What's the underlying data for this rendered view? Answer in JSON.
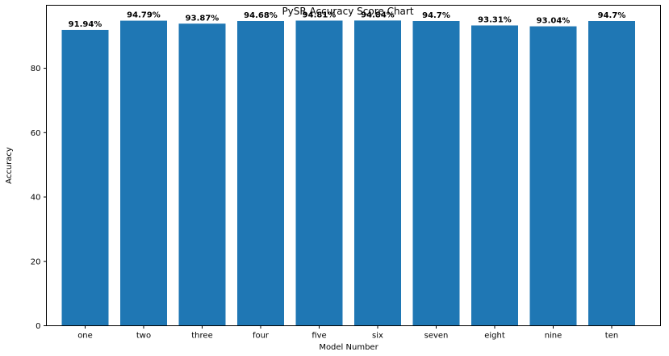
{
  "chart_data": {
    "type": "bar",
    "title": "PySR Accuracy Score Chart",
    "xlabel": "Model Number",
    "ylabel": "Accuracy",
    "categories": [
      "one",
      "two",
      "three",
      "four",
      "five",
      "six",
      "seven",
      "eight",
      "nine",
      "ten"
    ],
    "values": [
      91.94,
      94.79,
      93.87,
      94.68,
      94.81,
      94.84,
      94.7,
      93.31,
      93.04,
      94.7
    ],
    "data_labels": [
      "91.94%",
      "94.79%",
      "93.87%",
      "94.68%",
      "94.81%",
      "94.84%",
      "94.7%",
      "93.31%",
      "93.04%",
      "94.7%"
    ],
    "ylim": [
      0,
      99.58
    ],
    "yticks": [
      0,
      20,
      40,
      60,
      80
    ],
    "grid": false,
    "bar_color": "#1f77b4"
  }
}
